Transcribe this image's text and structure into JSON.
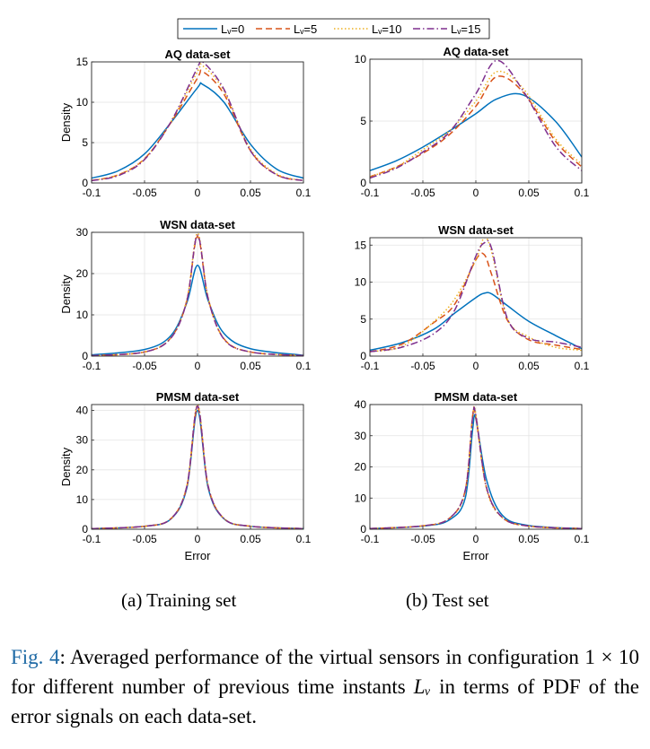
{
  "legend": {
    "entries": [
      {
        "label": "Lᵥ=0",
        "color": "#0072bd",
        "dash": "solid"
      },
      {
        "label": "Lᵥ=5",
        "color": "#d95319",
        "dash": "dashed"
      },
      {
        "label": "Lᵥ=10",
        "color": "#edb120",
        "dash": "dotted"
      },
      {
        "label": "Lᵥ=15",
        "color": "#7e2f8e",
        "dash": "dashdot"
      }
    ]
  },
  "subcaptions": {
    "a": "(a) Training set",
    "b": "(b) Test set"
  },
  "caption": {
    "label": "Fig. 4",
    "text_1": ": Averaged performance of the virtual sensors in configuration ",
    "config": "1 × 10",
    "text_2": " for different number of previous time instants ",
    "symbol": "Lᵥ",
    "text_3": " in terms of PDF of the error signals on each data-set."
  },
  "chart_data": [
    {
      "type": "line",
      "title": "AQ data-set",
      "xlabel": "",
      "ylabel": "Density",
      "xlim": [
        -0.1,
        0.1
      ],
      "ylim": [
        0,
        15
      ],
      "xticks": [
        "-0.1",
        "-0.05",
        "0",
        "0.05",
        "0.1"
      ],
      "yticks": [
        "0",
        "5",
        "10",
        "15"
      ],
      "grid": true,
      "x": [
        -0.1,
        -0.075,
        -0.05,
        -0.025,
        0,
        0.005,
        0.025,
        0.05,
        0.075,
        0.1
      ],
      "series": [
        {
          "name": "Lᵥ=0",
          "values": [
            0.6,
            1.5,
            3.6,
            7.5,
            11.8,
            12.2,
            10.0,
            4.8,
            1.7,
            0.6
          ]
        },
        {
          "name": "Lᵥ=5",
          "values": [
            0.3,
            1.0,
            3.0,
            7.5,
            13.0,
            13.8,
            11.0,
            4.0,
            1.0,
            0.3
          ]
        },
        {
          "name": "Lᵥ=10",
          "values": [
            0.3,
            1.0,
            3.0,
            7.6,
            13.8,
            14.5,
            11.4,
            4.2,
            1.1,
            0.3
          ]
        },
        {
          "name": "Lᵥ=15",
          "values": [
            0.3,
            0.9,
            2.9,
            7.6,
            14.3,
            15.0,
            11.6,
            4.0,
            1.0,
            0.3
          ]
        }
      ]
    },
    {
      "type": "line",
      "title": "AQ data-set",
      "xlabel": "",
      "ylabel": "",
      "xlim": [
        -0.1,
        0.1
      ],
      "ylim": [
        0,
        10
      ],
      "xticks": [
        "-0.1",
        "-0.05",
        "0",
        "0.05",
        "0.1"
      ],
      "yticks": [
        "0",
        "5",
        "10"
      ],
      "grid": true,
      "x": [
        -0.1,
        -0.075,
        -0.05,
        -0.025,
        0,
        0.02,
        0.045,
        0.075,
        0.1
      ],
      "series": [
        {
          "name": "Lᵥ=0",
          "values": [
            1.0,
            1.8,
            2.9,
            4.2,
            5.6,
            6.8,
            7.1,
            5.0,
            2.1
          ]
        },
        {
          "name": "Lᵥ=5",
          "values": [
            0.5,
            1.3,
            2.4,
            3.9,
            6.2,
            8.6,
            7.3,
            3.4,
            1.3
          ]
        },
        {
          "name": "Lᵥ=10",
          "values": [
            0.5,
            1.3,
            2.7,
            4.2,
            6.6,
            9.0,
            7.6,
            3.6,
            1.5
          ]
        },
        {
          "name": "Lᵥ=15",
          "values": [
            0.4,
            1.2,
            2.5,
            4.1,
            7.2,
            9.9,
            7.4,
            3.0,
            1.0
          ]
        }
      ]
    },
    {
      "type": "line",
      "title": "WSN data-set",
      "xlabel": "",
      "ylabel": "Density",
      "xlim": [
        -0.1,
        0.1
      ],
      "ylim": [
        0,
        30
      ],
      "xticks": [
        "-0.1",
        "-0.05",
        "0",
        "0.05",
        "0.1"
      ],
      "yticks": [
        "0",
        "10",
        "20",
        "30"
      ],
      "grid": true,
      "x": [
        -0.1,
        -0.05,
        -0.025,
        -0.01,
        0,
        0.01,
        0.025,
        0.05,
        0.1
      ],
      "series": [
        {
          "name": "Lᵥ=0",
          "values": [
            0.3,
            1.6,
            5.0,
            13.0,
            22.0,
            13.5,
            5.5,
            1.8,
            0.2
          ]
        },
        {
          "name": "Lᵥ=5",
          "values": [
            0.1,
            1.0,
            4.5,
            13.5,
            29.0,
            14.0,
            4.2,
            1.0,
            0.1
          ]
        },
        {
          "name": "Lᵥ=10",
          "values": [
            0.1,
            1.0,
            4.5,
            13.8,
            29.8,
            14.2,
            4.2,
            1.0,
            0.1
          ]
        },
        {
          "name": "Lᵥ=15",
          "values": [
            0.1,
            1.0,
            4.4,
            13.5,
            29.3,
            14.0,
            4.1,
            1.0,
            0.1
          ]
        }
      ]
    },
    {
      "type": "line",
      "title": "WSN data-set",
      "xlabel": "",
      "ylabel": "",
      "xlim": [
        -0.1,
        0.1
      ],
      "ylim": [
        0,
        16
      ],
      "xticks": [
        "-0.1",
        "-0.05",
        "0",
        "0.05",
        "0.1"
      ],
      "yticks": [
        "0",
        "5",
        "10",
        "15"
      ],
      "grid": true,
      "x": [
        -0.1,
        -0.07,
        -0.04,
        -0.02,
        0,
        0.008,
        0.015,
        0.03,
        0.05,
        0.075,
        0.1
      ],
      "series": [
        {
          "name": "Lᵥ=0",
          "values": [
            0.8,
            1.8,
            3.6,
            5.8,
            7.9,
            8.5,
            8.4,
            6.8,
            4.7,
            2.8,
            1.0
          ]
        },
        {
          "name": "Lᵥ=5",
          "values": [
            0.6,
            1.6,
            4.5,
            7.0,
            13.0,
            13.7,
            11.0,
            4.8,
            2.2,
            1.5,
            0.9
          ]
        },
        {
          "name": "Lᵥ=10",
          "values": [
            0.6,
            1.3,
            4.6,
            7.7,
            13.0,
            16.0,
            14.0,
            5.0,
            2.6,
            1.2,
            0.8
          ]
        },
        {
          "name": "Lᵥ=15",
          "values": [
            0.6,
            1.2,
            3.0,
            6.2,
            13.5,
            15.3,
            14.5,
            5.0,
            2.4,
            1.9,
            1.2
          ]
        }
      ]
    },
    {
      "type": "line",
      "title": "PMSM data-set",
      "xlabel": "Error",
      "ylabel": "Density",
      "xlim": [
        -0.1,
        0.1
      ],
      "ylim": [
        0,
        42
      ],
      "xticks": [
        "-0.1",
        "-0.05",
        "0",
        "0.05",
        "0.1"
      ],
      "yticks": [
        "0",
        "10",
        "20",
        "30",
        "40"
      ],
      "grid": true,
      "x": [
        -0.1,
        -0.05,
        -0.025,
        -0.01,
        0,
        0.01,
        0.025,
        0.05,
        0.1
      ],
      "series": [
        {
          "name": "Lᵥ=0",
          "values": [
            0.2,
            1.0,
            3.5,
            14.0,
            40.0,
            14.0,
            3.5,
            1.0,
            0.2
          ]
        },
        {
          "name": "Lᵥ=5",
          "values": [
            0.2,
            1.0,
            3.6,
            14.5,
            41.0,
            14.5,
            3.6,
            1.0,
            0.2
          ]
        },
        {
          "name": "Lᵥ=10",
          "values": [
            0.2,
            1.0,
            3.6,
            14.8,
            42.0,
            14.8,
            3.6,
            1.0,
            0.2
          ]
        },
        {
          "name": "Lᵥ=15",
          "values": [
            0.2,
            1.0,
            3.6,
            14.6,
            41.5,
            14.6,
            3.6,
            1.0,
            0.2
          ]
        }
      ]
    },
    {
      "type": "line",
      "title": "PMSM data-set",
      "xlabel": "Error",
      "ylabel": "",
      "xlim": [
        -0.1,
        0.1
      ],
      "ylim": [
        0,
        40
      ],
      "xticks": [
        "-0.1",
        "-0.05",
        "0",
        "0.05",
        "0.1"
      ],
      "yticks": [
        "0",
        "10",
        "20",
        "30",
        "40"
      ],
      "grid": true,
      "x": [
        -0.1,
        -0.05,
        -0.025,
        -0.01,
        -0.003,
        0,
        0.01,
        0.025,
        0.05,
        0.1
      ],
      "series": [
        {
          "name": "Lᵥ=0",
          "values": [
            0.2,
            1.0,
            3.0,
            10.0,
            32.0,
            35.5,
            16.0,
            4.5,
            1.2,
            0.2
          ]
        },
        {
          "name": "Lᵥ=5",
          "values": [
            0.2,
            1.1,
            3.5,
            12.5,
            36.5,
            36.0,
            13.5,
            3.8,
            1.0,
            0.2
          ]
        },
        {
          "name": "Lᵥ=10",
          "values": [
            0.2,
            1.1,
            3.5,
            12.0,
            36.0,
            37.0,
            13.0,
            3.7,
            1.0,
            0.2
          ]
        },
        {
          "name": "Lᵥ=15",
          "values": [
            0.2,
            1.1,
            3.5,
            12.5,
            36.0,
            36.5,
            13.5,
            3.8,
            1.0,
            0.2
          ]
        }
      ]
    }
  ]
}
